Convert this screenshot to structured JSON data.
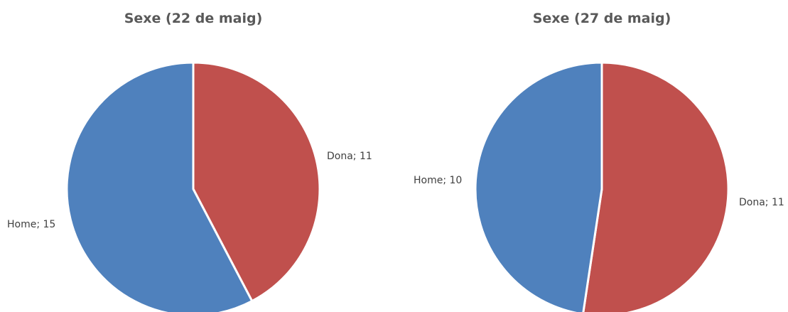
{
  "chart_data": [
    {
      "type": "pie",
      "title": "Sexe (22 de maig)",
      "slices": [
        {
          "name": "Dona",
          "value": 11,
          "label": "Dona; 11",
          "color": "#C0504D"
        },
        {
          "name": "Home",
          "value": 15,
          "label": "Home; 15",
          "color": "#4F81BD"
        }
      ],
      "start_angle": "12 o'clock",
      "direction": "clockwise"
    },
    {
      "type": "pie",
      "title": "Sexe (27 de maig)",
      "slices": [
        {
          "name": "Dona",
          "value": 11,
          "label": "Dona; 11",
          "color": "#C0504D"
        },
        {
          "name": "Home",
          "value": 10,
          "label": "Home; 10",
          "color": "#4F81BD"
        }
      ],
      "start_angle": "12 o'clock",
      "direction": "clockwise"
    }
  ]
}
